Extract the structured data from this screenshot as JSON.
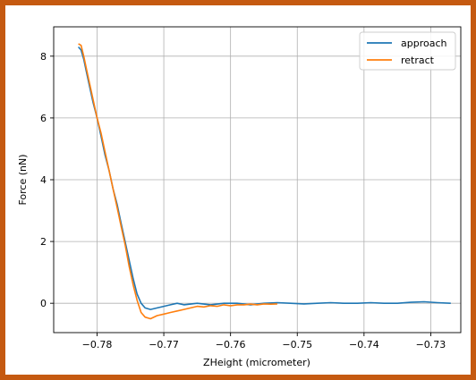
{
  "colors": {
    "frame": "#c55a11",
    "approach": "#1f77b4",
    "retract": "#ff7f0e",
    "grid": "#b0b0b0"
  },
  "chart_data": {
    "type": "line",
    "xlabel": "ZHeight (micrometer)",
    "ylabel": "Force (nN)",
    "xlim": [
      -0.7865,
      -0.7255
    ],
    "ylim": [
      -0.95,
      8.95
    ],
    "grid": true,
    "legend_position": "top-right",
    "xticks": [
      -0.78,
      -0.77,
      -0.76,
      -0.75,
      -0.74,
      -0.73
    ],
    "xtick_labels": [
      "−0.78",
      "−0.77",
      "−0.76",
      "−0.75",
      "−0.74",
      "−0.73"
    ],
    "yticks": [
      0,
      2,
      4,
      6,
      8
    ],
    "ytick_labels": [
      "0",
      "2",
      "4",
      "6",
      "8"
    ],
    "series": [
      {
        "name": "approach",
        "x": [
          -0.7828,
          -0.7824,
          -0.782,
          -0.7816,
          -0.7812,
          -0.7806,
          -0.78,
          -0.7794,
          -0.7788,
          -0.7782,
          -0.7776,
          -0.777,
          -0.7764,
          -0.7758,
          -0.7752,
          -0.7746,
          -0.774,
          -0.7734,
          -0.7728,
          -0.772,
          -0.771,
          -0.77,
          -0.769,
          -0.768,
          -0.767,
          -0.765,
          -0.763,
          -0.761,
          -0.759,
          -0.757,
          -0.755,
          -0.753,
          -0.751,
          -0.749,
          -0.747,
          -0.745,
          -0.743,
          -0.741,
          -0.739,
          -0.737,
          -0.735,
          -0.733,
          -0.731,
          -0.729,
          -0.727
        ],
        "y": [
          8.3,
          8.2,
          7.9,
          7.5,
          7.1,
          6.5,
          6.0,
          5.4,
          4.8,
          4.3,
          3.7,
          3.2,
          2.6,
          2.0,
          1.4,
          0.8,
          0.3,
          0.0,
          -0.15,
          -0.2,
          -0.15,
          -0.1,
          -0.05,
          0.0,
          -0.05,
          0.0,
          -0.05,
          0.0,
          0.0,
          -0.05,
          0.0,
          0.02,
          0.0,
          -0.02,
          0.0,
          0.02,
          0.0,
          0.0,
          0.02,
          0.0,
          0.0,
          0.03,
          0.05,
          0.02,
          0.0
        ]
      },
      {
        "name": "retract",
        "x": [
          -0.7828,
          -0.7824,
          -0.782,
          -0.7816,
          -0.7812,
          -0.7806,
          -0.78,
          -0.7794,
          -0.7788,
          -0.7782,
          -0.7776,
          -0.777,
          -0.7764,
          -0.7758,
          -0.7752,
          -0.7746,
          -0.774,
          -0.7734,
          -0.7728,
          -0.772,
          -0.771,
          -0.77,
          -0.769,
          -0.768,
          -0.767,
          -0.766,
          -0.765,
          -0.764,
          -0.763,
          -0.762,
          -0.761,
          -0.76,
          -0.759,
          -0.758,
          -0.757,
          -0.756,
          -0.755,
          -0.754,
          -0.753
        ],
        "y": [
          8.4,
          8.35,
          8.0,
          7.6,
          7.2,
          6.6,
          6.0,
          5.5,
          4.9,
          4.3,
          3.7,
          3.1,
          2.5,
          1.9,
          1.2,
          0.6,
          0.1,
          -0.3,
          -0.45,
          -0.5,
          -0.4,
          -0.35,
          -0.3,
          -0.25,
          -0.2,
          -0.15,
          -0.1,
          -0.12,
          -0.08,
          -0.1,
          -0.05,
          -0.08,
          -0.05,
          -0.05,
          -0.03,
          -0.05,
          -0.02,
          -0.03,
          -0.02
        ]
      }
    ]
  }
}
